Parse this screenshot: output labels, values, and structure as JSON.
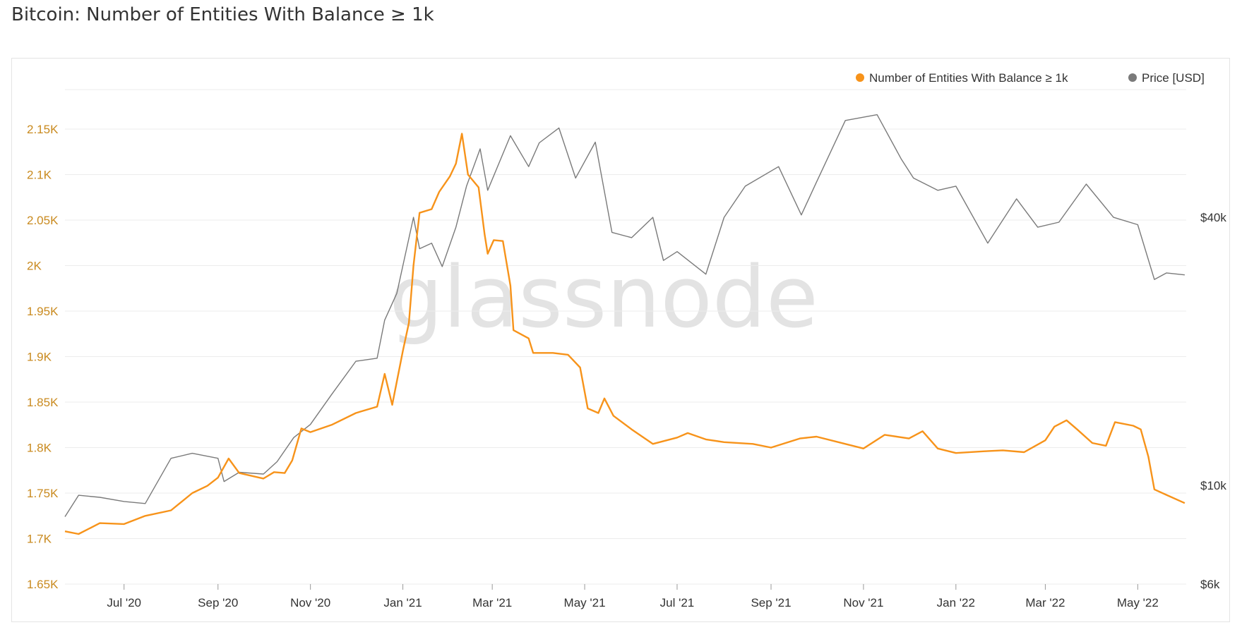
{
  "title": "Bitcoin: Number of Entities With Balance ≥ 1k",
  "watermark": "glassnode",
  "colors": {
    "entities": "#f7931a",
    "price": "#7a7a7a",
    "left_axis_text": "#c98a1f",
    "right_axis_text": "#333333",
    "x_axis_text": "#333333",
    "grid": "#ececec",
    "watermark": "#e3e3e3"
  },
  "chart_data": {
    "type": "line",
    "title": "Bitcoin: Number of Entities With Balance ≥ 1k",
    "legend_position": "top-right",
    "grid": true,
    "x_range": [
      "2020-05-23",
      "2022-06-02"
    ],
    "x_ticks": [
      {
        "date": "2020-07-01",
        "label": "Jul '20"
      },
      {
        "date": "2020-09-01",
        "label": "Sep '20"
      },
      {
        "date": "2020-11-01",
        "label": "Nov '20"
      },
      {
        "date": "2021-01-01",
        "label": "Jan '21"
      },
      {
        "date": "2021-03-01",
        "label": "Mar '21"
      },
      {
        "date": "2021-05-01",
        "label": "May '21"
      },
      {
        "date": "2021-07-01",
        "label": "Jul '21"
      },
      {
        "date": "2021-09-01",
        "label": "Sep '21"
      },
      {
        "date": "2021-11-01",
        "label": "Nov '21"
      },
      {
        "date": "2022-01-01",
        "label": "Jan '22"
      },
      {
        "date": "2022-03-01",
        "label": "Mar '22"
      },
      {
        "date": "2022-05-01",
        "label": "May '22"
      }
    ],
    "y_left": {
      "min": 1650,
      "max": 2150,
      "ticks": [
        {
          "value": 1650,
          "label": "1.65K"
        },
        {
          "value": 1700,
          "label": "1.7K"
        },
        {
          "value": 1750,
          "label": "1.75K"
        },
        {
          "value": 1800,
          "label": "1.8K"
        },
        {
          "value": 1850,
          "label": "1.85K"
        },
        {
          "value": 1900,
          "label": "1.9K"
        },
        {
          "value": 1950,
          "label": "1.95K"
        },
        {
          "value": 2000,
          "label": "2K"
        },
        {
          "value": 2050,
          "label": "2.05K"
        },
        {
          "value": 2100,
          "label": "2.1K"
        },
        {
          "value": 2150,
          "label": "2.15K"
        }
      ]
    },
    "y_right": {
      "scale": "log",
      "ticks": [
        {
          "value": 6000,
          "label": "$6k"
        },
        {
          "value": 10000,
          "label": "$10k"
        },
        {
          "value": 40000,
          "label": "$40k"
        }
      ]
    },
    "series": [
      {
        "name": "Number of Entities With Balance ≥ 1k",
        "axis": "left",
        "points": [
          [
            "2020-05-23",
            1708
          ],
          [
            "2020-06-01",
            1705
          ],
          [
            "2020-06-15",
            1717
          ],
          [
            "2020-07-01",
            1716
          ],
          [
            "2020-07-15",
            1725
          ],
          [
            "2020-08-01",
            1731
          ],
          [
            "2020-08-15",
            1750
          ],
          [
            "2020-08-25",
            1758
          ],
          [
            "2020-09-01",
            1767
          ],
          [
            "2020-09-08",
            1788
          ],
          [
            "2020-09-15",
            1772
          ],
          [
            "2020-10-01",
            1766
          ],
          [
            "2020-10-08",
            1773
          ],
          [
            "2020-10-15",
            1772
          ],
          [
            "2020-10-20",
            1786
          ],
          [
            "2020-10-26",
            1821
          ],
          [
            "2020-11-01",
            1817
          ],
          [
            "2020-11-15",
            1825
          ],
          [
            "2020-12-01",
            1838
          ],
          [
            "2020-12-15",
            1845
          ],
          [
            "2020-12-20",
            1881
          ],
          [
            "2020-12-25",
            1847
          ],
          [
            "2021-01-01",
            1906
          ],
          [
            "2021-01-05",
            1937
          ],
          [
            "2021-01-08",
            2000
          ],
          [
            "2021-01-12",
            2058
          ],
          [
            "2021-01-20",
            2062
          ],
          [
            "2021-01-25",
            2081
          ],
          [
            "2021-02-01",
            2098
          ],
          [
            "2021-02-05",
            2112
          ],
          [
            "2021-02-09",
            2145
          ],
          [
            "2021-02-13",
            2100
          ],
          [
            "2021-02-20",
            2086
          ],
          [
            "2021-02-24",
            2034
          ],
          [
            "2021-02-26",
            2013
          ],
          [
            "2021-03-02",
            2028
          ],
          [
            "2021-03-08",
            2027
          ],
          [
            "2021-03-13",
            1978
          ],
          [
            "2021-03-15",
            1929
          ],
          [
            "2021-03-25",
            1920
          ],
          [
            "2021-03-28",
            1904
          ],
          [
            "2021-04-10",
            1904
          ],
          [
            "2021-04-20",
            1902
          ],
          [
            "2021-04-28",
            1888
          ],
          [
            "2021-05-03",
            1843
          ],
          [
            "2021-05-10",
            1838
          ],
          [
            "2021-05-14",
            1854
          ],
          [
            "2021-05-20",
            1835
          ],
          [
            "2021-06-01",
            1820
          ],
          [
            "2021-06-15",
            1804
          ],
          [
            "2021-07-01",
            1811
          ],
          [
            "2021-07-08",
            1816
          ],
          [
            "2021-07-20",
            1809
          ],
          [
            "2021-08-01",
            1806
          ],
          [
            "2021-08-20",
            1804
          ],
          [
            "2021-09-01",
            1800
          ],
          [
            "2021-09-20",
            1810
          ],
          [
            "2021-10-01",
            1812
          ],
          [
            "2021-10-20",
            1804
          ],
          [
            "2021-11-01",
            1799
          ],
          [
            "2021-11-15",
            1814
          ],
          [
            "2021-12-01",
            1810
          ],
          [
            "2021-12-10",
            1818
          ],
          [
            "2021-12-20",
            1799
          ],
          [
            "2022-01-01",
            1794
          ],
          [
            "2022-01-20",
            1796
          ],
          [
            "2022-02-01",
            1797
          ],
          [
            "2022-02-15",
            1795
          ],
          [
            "2022-03-01",
            1808
          ],
          [
            "2022-03-07",
            1823
          ],
          [
            "2022-03-15",
            1830
          ],
          [
            "2022-03-22",
            1820
          ],
          [
            "2022-04-01",
            1805
          ],
          [
            "2022-04-10",
            1802
          ],
          [
            "2022-04-16",
            1828
          ],
          [
            "2022-04-28",
            1824
          ],
          [
            "2022-05-03",
            1820
          ],
          [
            "2022-05-08",
            1790
          ],
          [
            "2022-05-12",
            1754
          ],
          [
            "2022-05-20",
            1748
          ],
          [
            "2022-06-01",
            1739
          ]
        ]
      },
      {
        "name": "Price [USD]",
        "axis": "right",
        "points": [
          [
            "2020-05-23",
            8500
          ],
          [
            "2020-06-01",
            9500
          ],
          [
            "2020-06-15",
            9400
          ],
          [
            "2020-07-01",
            9200
          ],
          [
            "2020-07-15",
            9100
          ],
          [
            "2020-08-01",
            11500
          ],
          [
            "2020-08-15",
            11800
          ],
          [
            "2020-09-01",
            11500
          ],
          [
            "2020-09-05",
            10200
          ],
          [
            "2020-09-15",
            10700
          ],
          [
            "2020-10-01",
            10600
          ],
          [
            "2020-10-10",
            11300
          ],
          [
            "2020-10-21",
            12800
          ],
          [
            "2020-11-01",
            13700
          ],
          [
            "2020-11-15",
            16000
          ],
          [
            "2020-12-01",
            19000
          ],
          [
            "2020-12-15",
            19300
          ],
          [
            "2020-12-20",
            23500
          ],
          [
            "2020-12-28",
            27000
          ],
          [
            "2021-01-08",
            40000
          ],
          [
            "2021-01-12",
            34000
          ],
          [
            "2021-01-20",
            35000
          ],
          [
            "2021-01-27",
            31000
          ],
          [
            "2021-02-05",
            38000
          ],
          [
            "2021-02-12",
            47000
          ],
          [
            "2021-02-21",
            57000
          ],
          [
            "2021-02-26",
            46000
          ],
          [
            "2021-03-13",
            61000
          ],
          [
            "2021-03-25",
            52000
          ],
          [
            "2021-04-01",
            58800
          ],
          [
            "2021-04-14",
            63500
          ],
          [
            "2021-04-25",
            49000
          ],
          [
            "2021-05-08",
            59000
          ],
          [
            "2021-05-19",
            37000
          ],
          [
            "2021-06-01",
            36000
          ],
          [
            "2021-06-15",
            40000
          ],
          [
            "2021-06-22",
            32000
          ],
          [
            "2021-07-01",
            33500
          ],
          [
            "2021-07-20",
            29800
          ],
          [
            "2021-08-01",
            40000
          ],
          [
            "2021-08-15",
            47000
          ],
          [
            "2021-09-06",
            52000
          ],
          [
            "2021-09-21",
            40500
          ],
          [
            "2021-10-01",
            48000
          ],
          [
            "2021-10-20",
            66000
          ],
          [
            "2021-11-10",
            68000
          ],
          [
            "2021-11-26",
            54000
          ],
          [
            "2021-12-04",
            49000
          ],
          [
            "2021-12-20",
            46000
          ],
          [
            "2022-01-01",
            47000
          ],
          [
            "2022-01-22",
            35000
          ],
          [
            "2022-02-10",
            44000
          ],
          [
            "2022-02-24",
            38000
          ],
          [
            "2022-03-10",
            39000
          ],
          [
            "2022-03-28",
            47500
          ],
          [
            "2022-04-15",
            40000
          ],
          [
            "2022-05-01",
            38500
          ],
          [
            "2022-05-12",
            29000
          ],
          [
            "2022-05-20",
            30000
          ],
          [
            "2022-06-01",
            29700
          ]
        ]
      }
    ]
  }
}
